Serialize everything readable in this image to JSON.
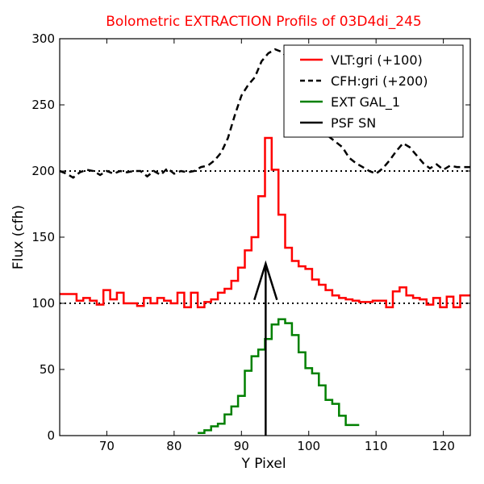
{
  "chart_data": {
    "type": "line",
    "title": "Bolometric EXTRACTION Profils of 03D4di_245",
    "title_color": "#ff0000",
    "xlabel": "Y Pixel",
    "ylabel": "Flux (cfh)",
    "xlim": [
      63,
      124
    ],
    "ylim": [
      0,
      300
    ],
    "xticks": [
      70,
      80,
      90,
      100,
      110,
      120
    ],
    "yticks": [
      0,
      50,
      100,
      150,
      200,
      250,
      300
    ],
    "grid": false,
    "legend_position": "top-right",
    "reference_lines": [
      {
        "y": 200,
        "style": "dotted",
        "color": "#000000"
      },
      {
        "y": 100,
        "style": "dotted",
        "color": "#000000"
      }
    ],
    "series": [
      {
        "name": "VLT:gri (+100)",
        "color": "#ff0000",
        "style": "steps",
        "x": [
          63,
          64,
          65,
          66,
          67,
          68,
          69,
          70,
          71,
          72,
          73,
          74,
          75,
          76,
          77,
          78,
          79,
          80,
          81,
          82,
          83,
          84,
          85,
          86,
          87,
          88,
          89,
          90,
          91,
          92,
          93,
          94,
          95,
          96,
          97,
          98,
          99,
          100,
          101,
          102,
          103,
          104,
          105,
          106,
          107,
          108,
          109,
          110,
          111,
          112,
          113,
          114,
          115,
          116,
          117,
          118,
          119,
          120,
          121,
          122,
          123,
          124
        ],
        "values": [
          107,
          107,
          107,
          102,
          104,
          102,
          99,
          110,
          103,
          108,
          100,
          100,
          98,
          104,
          100,
          104,
          102,
          100,
          108,
          97,
          108,
          97,
          101,
          103,
          108,
          111,
          117,
          127,
          140,
          150,
          181,
          225,
          201,
          167,
          142,
          132,
          128,
          126,
          118,
          114,
          110,
          106,
          104,
          103,
          102,
          101,
          101,
          102,
          102,
          97,
          109,
          112,
          106,
          104,
          103,
          99,
          104,
          97,
          105,
          97,
          106,
          106
        ]
      },
      {
        "name": "CFH:gri (+200)",
        "color": "#000000",
        "style": "dashed",
        "x": [
          63,
          64,
          65,
          66,
          67,
          68,
          69,
          70,
          71,
          72,
          73,
          74,
          75,
          76,
          77,
          78,
          79,
          80,
          81,
          82,
          83,
          84,
          85,
          86,
          87,
          88,
          89,
          90,
          91,
          92,
          93,
          94,
          95,
          96,
          97,
          98,
          99,
          100,
          101,
          102,
          103,
          104,
          105,
          106,
          107,
          108,
          109,
          110,
          111,
          112,
          113,
          114,
          115,
          116,
          117,
          118,
          119,
          120,
          121,
          122,
          123,
          124
        ],
        "values": [
          200,
          198,
          195,
          199,
          201,
          200,
          197,
          200,
          198,
          200,
          199,
          200,
          200,
          196,
          200,
          197,
          202,
          198,
          200,
          199,
          200,
          203,
          204,
          208,
          214,
          225,
          242,
          257,
          265,
          271,
          283,
          289,
          292,
          290,
          285,
          275,
          262,
          250,
          240,
          232,
          226,
          222,
          218,
          210,
          206,
          203,
          200,
          198,
          202,
          208,
          215,
          221,
          218,
          212,
          206,
          202,
          205,
          201,
          204,
          203,
          203,
          203
        ]
      },
      {
        "name": "EXT GAL_1",
        "color": "#008000",
        "style": "steps",
        "x": [
          84,
          85,
          86,
          87,
          88,
          89,
          90,
          91,
          92,
          93,
          94,
          95,
          96,
          97,
          98,
          99,
          100,
          101,
          102,
          103,
          104,
          105,
          106,
          107
        ],
        "values": [
          2,
          4,
          7,
          9,
          16,
          22,
          30,
          49,
          60,
          65,
          73,
          84,
          88,
          85,
          76,
          63,
          51,
          47,
          38,
          27,
          24,
          15,
          8,
          8
        ]
      },
      {
        "name": "PSF SN",
        "color": "#000000",
        "style": "arrow",
        "x": [
          93.6,
          93.6
        ],
        "values": [
          0,
          130
        ]
      }
    ]
  }
}
